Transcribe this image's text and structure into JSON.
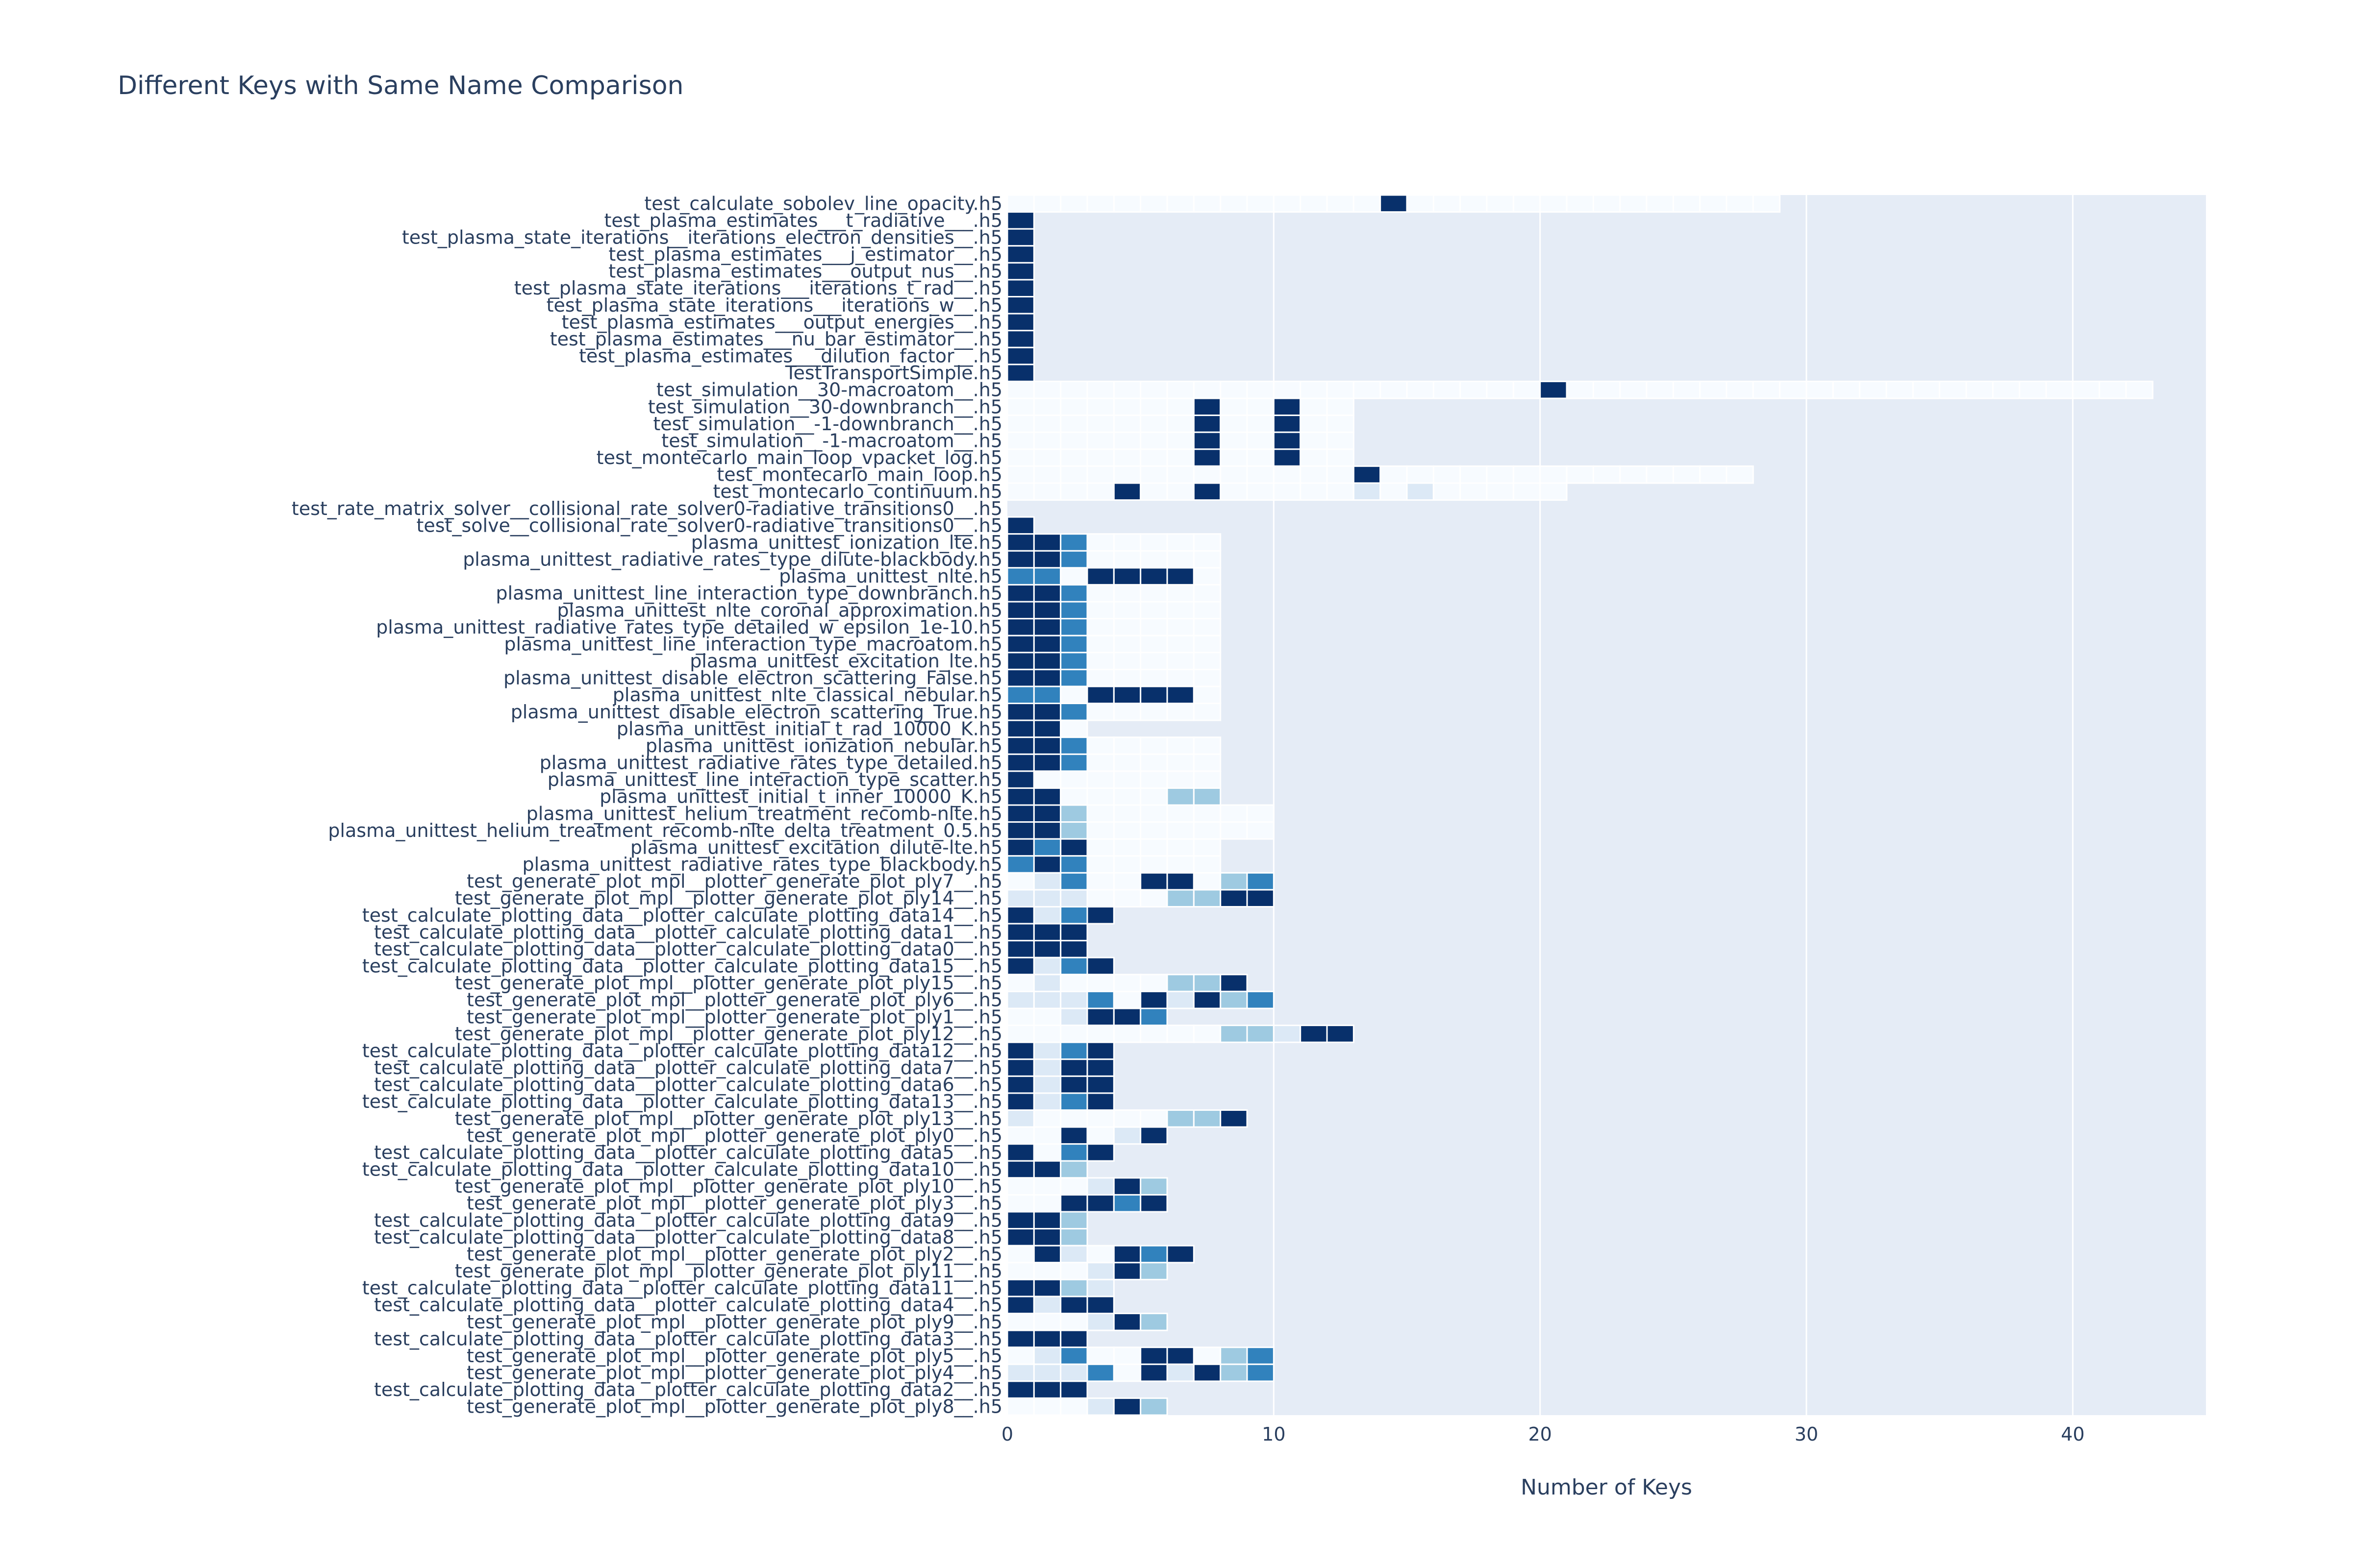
{
  "chart_data": {
    "type": "heatmap",
    "title": "Different Keys with Same Name Comparison",
    "xlabel": "Number of Keys",
    "ylabel": "",
    "xlim": [
      0,
      45
    ],
    "x_ticks": [
      0,
      10,
      20,
      30,
      40
    ],
    "x_tick_labels": [
      "0",
      "10",
      "20",
      "30",
      "40"
    ],
    "grid": true,
    "colorscale": "Blues (white to dark navy)",
    "colors": {
      "plot_background": "#e5ecf6",
      "font": "#2a3f5f",
      "level_0": "#f7fbff",
      "level_1": "#dce9f6",
      "level_2": "#9ecae1",
      "level_3": "#3182bd",
      "level_4": "#08306b"
    },
    "rows": [
      {
        "label": "test_calculate_sobolev_line_opacity.h5",
        "cells": "00000000000000400000000000000"
      },
      {
        "label": "test_plasma_estimates___t_radiative___.h5",
        "cells": "4"
      },
      {
        "label": "test_plasma_state_iterations__iterations_electron_densities__.h5",
        "cells": "4"
      },
      {
        "label": "test_plasma_estimates___j_estimator__.h5",
        "cells": "4"
      },
      {
        "label": "test_plasma_estimates___output_nus__.h5",
        "cells": "4"
      },
      {
        "label": "test_plasma_state_iterations___iterations_t_rad__.h5",
        "cells": "4"
      },
      {
        "label": "test_plasma_state_iterations___iterations_w__.h5",
        "cells": "4"
      },
      {
        "label": "test_plasma_estimates___output_energies__.h5",
        "cells": "4"
      },
      {
        "label": "test_plasma_estimates___nu_bar_estimator__.h5",
        "cells": "4"
      },
      {
        "label": "test_plasma_estimates___dilution_factor__.h5",
        "cells": "4"
      },
      {
        "label": "TestTransportSimple.h5",
        "cells": "4"
      },
      {
        "label": "test_simulation__30-macroatom__.h5",
        "cells": "0000000000000000000040000000000000000000000"
      },
      {
        "label": "test_simulation__30-downbranch__.h5",
        "cells": "0000000400400"
      },
      {
        "label": "test_simulation__-1-downbranch__.h5",
        "cells": "0000000400400"
      },
      {
        "label": "test_simulation__-1-macroatom__.h5",
        "cells": "0000000400400"
      },
      {
        "label": "test_montecarlo_main_loop_vpacket_log.h5",
        "cells": "0000000400400"
      },
      {
        "label": "test_montecarlo_main_loop.h5",
        "cells": "0000000000000400000000000000"
      },
      {
        "label": "test_montecarlo_continuum.h5",
        "cells": "000040040000010100000"
      },
      {
        "label": "test_rate_matrix_solver__collisional_rate_solver0-radiative_transitions0__.h5",
        "cells": ""
      },
      {
        "label": "test_solve__collisional_rate_solver0-radiative_transitions0__.h5",
        "cells": "4"
      },
      {
        "label": "plasma_unittest_ionization_lte.h5",
        "cells": "44300000"
      },
      {
        "label": "plasma_unittest_radiative_rates_type_dilute-blackbody.h5",
        "cells": "44300000"
      },
      {
        "label": "plasma_unittest_nlte.h5",
        "cells": "33044440"
      },
      {
        "label": "plasma_unittest_line_interaction_type_downbranch.h5",
        "cells": "44300000"
      },
      {
        "label": "plasma_unittest_nlte_coronal_approximation.h5",
        "cells": "44300000"
      },
      {
        "label": "plasma_unittest_radiative_rates_type_detailed_w_epsilon_1e-10.h5",
        "cells": "44300000"
      },
      {
        "label": "plasma_unittest_line_interaction_type_macroatom.h5",
        "cells": "44300000"
      },
      {
        "label": "plasma_unittest_excitation_lte.h5",
        "cells": "44300000"
      },
      {
        "label": "plasma_unittest_disable_electron_scattering_False.h5",
        "cells": "44300000"
      },
      {
        "label": "plasma_unittest_nlte_classical_nebular.h5",
        "cells": "33044440"
      },
      {
        "label": "plasma_unittest_disable_electron_scattering_True.h5",
        "cells": "44300000"
      },
      {
        "label": "plasma_unittest_initial_t_rad_10000_K.h5",
        "cells": "440"
      },
      {
        "label": "plasma_unittest_ionization_nebular.h5",
        "cells": "44300000"
      },
      {
        "label": "plasma_unittest_radiative_rates_type_detailed.h5",
        "cells": "44300000"
      },
      {
        "label": "plasma_unittest_line_interaction_type_scatter.h5",
        "cells": "40000000"
      },
      {
        "label": "plasma_unittest_initial_t_inner_10000_K.h5",
        "cells": "44000022"
      },
      {
        "label": "plasma_unittest_helium_treatment_recomb-nlte.h5",
        "cells": "4420000000"
      },
      {
        "label": "plasma_unittest_helium_treatment_recomb-nlte_delta_treatment_0.5.h5",
        "cells": "4420000000"
      },
      {
        "label": "plasma_unittest_excitation_dilute-lte.h5",
        "cells": "43400000"
      },
      {
        "label": "plasma_unittest_radiative_rates_type_blackbody.h5",
        "cells": "34300000"
      },
      {
        "label": "test_generate_plot_mpl__plotter_generate_plot_ply7__.h5",
        "cells": "0130044023"
      },
      {
        "label": "test_generate_plot_mpl__plotter_generate_plot_ply14__.h5",
        "cells": "1110002244"
      },
      {
        "label": "test_calculate_plotting_data__plotter_calculate_plotting_data14__.h5",
        "cells": "4134"
      },
      {
        "label": "test_calculate_plotting_data__plotter_calculate_plotting_data1__.h5",
        "cells": "444"
      },
      {
        "label": "test_calculate_plotting_data__plotter_calculate_plotting_data0__.h5",
        "cells": "444"
      },
      {
        "label": "test_calculate_plotting_data__plotter_calculate_plotting_data15__.h5",
        "cells": "4134"
      },
      {
        "label": "test_generate_plot_mpl__plotter_generate_plot_ply15__.h5",
        "cells": "010000224"
      },
      {
        "label": "test_generate_plot_mpl__plotter_generate_plot_ply6__.h5",
        "cells": "1113041423"
      },
      {
        "label": "test_generate_plot_mpl__plotter_generate_plot_ply1__.h5",
        "cells": "001443"
      },
      {
        "label": "test_generate_plot_mpl__plotter_generate_plot_ply12__.h5",
        "cells": "0000000022144"
      },
      {
        "label": "test_calculate_plotting_data__plotter_calculate_plotting_data12__.h5",
        "cells": "4134"
      },
      {
        "label": "test_calculate_plotting_data__plotter_calculate_plotting_data7__.h5",
        "cells": "4144"
      },
      {
        "label": "test_calculate_plotting_data__plotter_calculate_plotting_data6__.h5",
        "cells": "4144"
      },
      {
        "label": "test_calculate_plotting_data__plotter_calculate_plotting_data13__.h5",
        "cells": "4134"
      },
      {
        "label": "test_generate_plot_mpl__plotter_generate_plot_ply13__.h5",
        "cells": "100000224"
      },
      {
        "label": "test_generate_plot_mpl__plotter_generate_plot_ply0__.h5",
        "cells": "004014"
      },
      {
        "label": "test_calculate_plotting_data__plotter_calculate_plotting_data5__.h5",
        "cells": "4034"
      },
      {
        "label": "test_calculate_plotting_data__plotter_calculate_plotting_data10__.h5",
        "cells": "442"
      },
      {
        "label": "test_generate_plot_mpl__plotter_generate_plot_ply10__.h5",
        "cells": "000142"
      },
      {
        "label": "test_generate_plot_mpl__plotter_generate_plot_ply3__.h5",
        "cells": "004434"
      },
      {
        "label": "test_calculate_plotting_data__plotter_calculate_plotting_data9__.h5",
        "cells": "442"
      },
      {
        "label": "test_calculate_plotting_data__plotter_calculate_plotting_data8__.h5",
        "cells": "442"
      },
      {
        "label": "test_generate_plot_mpl__plotter_generate_plot_ply2__.h5",
        "cells": "0410434"
      },
      {
        "label": "test_generate_plot_mpl__plotter_generate_plot_ply11__.h5",
        "cells": "000142"
      },
      {
        "label": "test_calculate_plotting_data__plotter_calculate_plotting_data11__.h5",
        "cells": "4421"
      },
      {
        "label": "test_calculate_plotting_data__plotter_calculate_plotting_data4__.h5",
        "cells": "4144"
      },
      {
        "label": "test_generate_plot_mpl__plotter_generate_plot_ply9__.h5",
        "cells": "000142"
      },
      {
        "label": "test_calculate_plotting_data__plotter_calculate_plotting_data3__.h5",
        "cells": "444"
      },
      {
        "label": "test_generate_plot_mpl__plotter_generate_plot_ply5__.h5",
        "cells": "0130044023"
      },
      {
        "label": "test_generate_plot_mpl__plotter_generate_plot_ply4__.h5",
        "cells": "1113041423"
      },
      {
        "label": "test_calculate_plotting_data__plotter_calculate_plotting_data2__.h5",
        "cells": "444"
      },
      {
        "label": "test_generate_plot_mpl__plotter_generate_plot_ply8__.h5",
        "cells": "000142"
      }
    ]
  }
}
